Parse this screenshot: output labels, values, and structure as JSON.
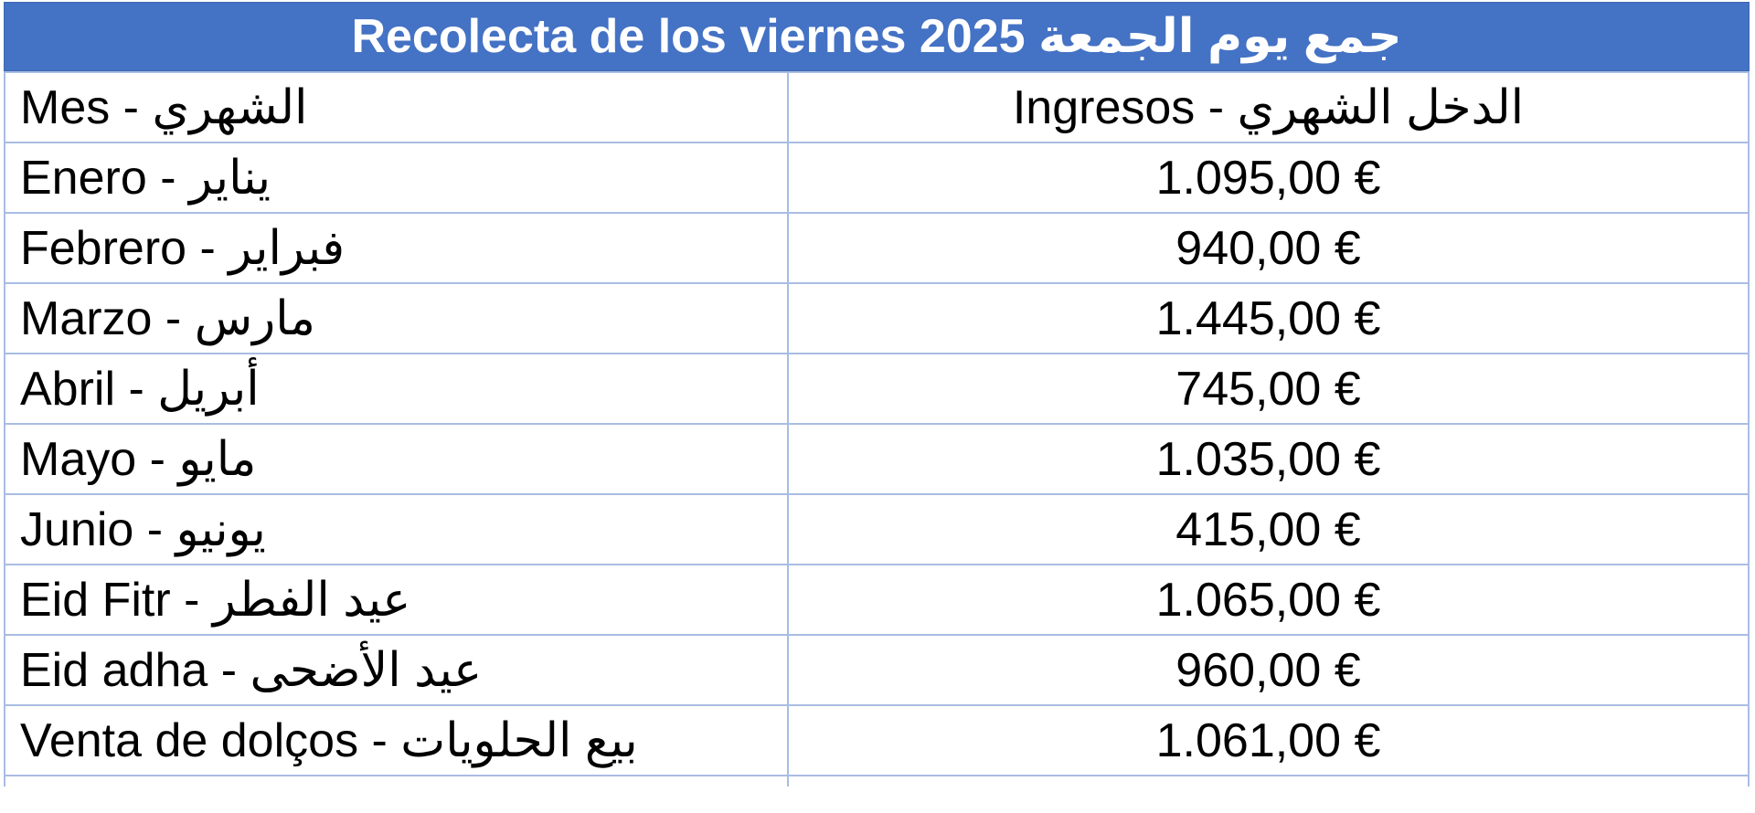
{
  "title": "Recolecta de los viernes 2025 جمع يوم الجمعة",
  "header": {
    "month": "Mes - الشهري",
    "income": "Ingresos - الدخل الشهري"
  },
  "rows": [
    {
      "month": "Enero - يناير",
      "amount": "1.095,00 €"
    },
    {
      "month": "Febrero - فبراير",
      "amount": "940,00 €"
    },
    {
      "month": "Marzo - مارس",
      "amount": "1.445,00 €"
    },
    {
      "month": "Abril - أبريل",
      "amount": "745,00 €"
    },
    {
      "month": "Mayo - مايو",
      "amount": "1.035,00 €"
    },
    {
      "month": "Junio - يونيو",
      "amount": "415,00 €"
    },
    {
      "month": "Eid Fitr - عيد الفطر",
      "amount": "1.065,00 €"
    },
    {
      "month": "Eid adha - عيد الأضحى",
      "amount": "960,00 €"
    },
    {
      "month": "Venta de dolços - بيع الحلويات",
      "amount": "1.061,00 €"
    }
  ],
  "colors": {
    "header_bg": "#4472c4",
    "header_text": "#ffffff",
    "grid": "#a9bde3"
  }
}
